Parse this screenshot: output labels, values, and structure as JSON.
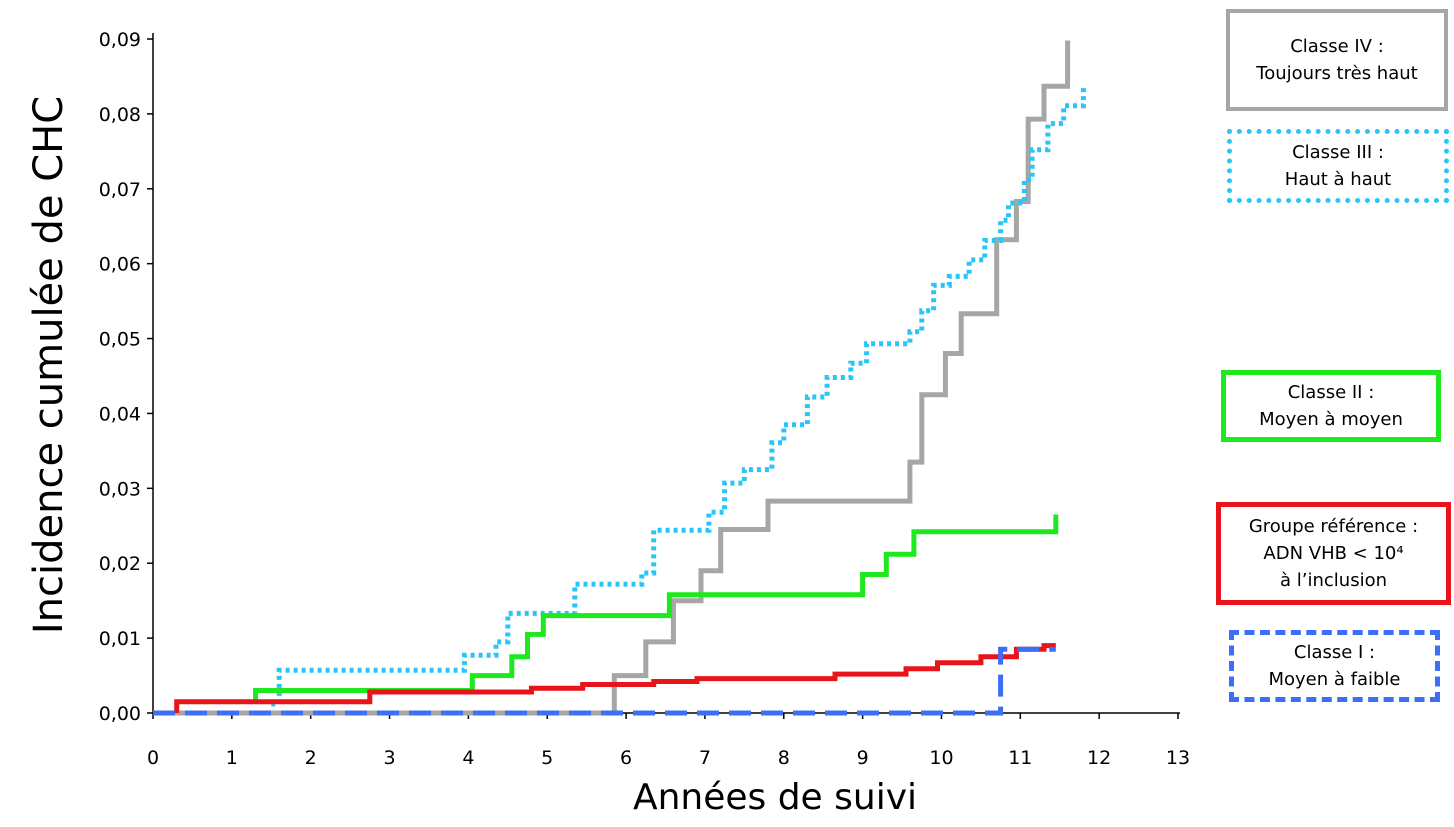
{
  "chart_data": {
    "type": "line",
    "step": true,
    "xlabel": "Années de suivi",
    "ylabel": "Incidence cumulée de CHC",
    "xlim": [
      0,
      13
    ],
    "ylim": [
      0,
      0.09
    ],
    "x_ticks": [
      "0",
      "1",
      "2",
      "3",
      "4",
      "5",
      "6",
      "7",
      "8",
      "9",
      "10",
      "11",
      "12",
      "13"
    ],
    "y_ticks": [
      "0,00",
      "0,01",
      "0,02",
      "0,03",
      "0,04",
      "0,05",
      "0,06",
      "0,07",
      "0,08",
      "0,09"
    ],
    "grid": false,
    "legend_position": "right",
    "series": [
      {
        "name": "Classe IV : Toujours très haut",
        "label_lines": [
          "Classe IV :",
          "Toujours très haut"
        ],
        "color": "#a6a6a6",
        "style": "solid",
        "points": [
          [
            0,
            0
          ],
          [
            5.85,
            0
          ],
          [
            5.85,
            0.005
          ],
          [
            6.25,
            0.005
          ],
          [
            6.25,
            0.0095
          ],
          [
            6.6,
            0.0095
          ],
          [
            6.6,
            0.015
          ],
          [
            6.95,
            0.015
          ],
          [
            6.95,
            0.019
          ],
          [
            7.2,
            0.019
          ],
          [
            7.2,
            0.0245
          ],
          [
            7.8,
            0.0245
          ],
          [
            7.8,
            0.0283
          ],
          [
            9.6,
            0.0283
          ],
          [
            9.6,
            0.0335
          ],
          [
            9.75,
            0.0335
          ],
          [
            9.75,
            0.0425
          ],
          [
            10.05,
            0.0425
          ],
          [
            10.05,
            0.048
          ],
          [
            10.25,
            0.048
          ],
          [
            10.25,
            0.0533
          ],
          [
            10.7,
            0.0533
          ],
          [
            10.7,
            0.0632
          ],
          [
            10.95,
            0.0632
          ],
          [
            10.95,
            0.0683
          ],
          [
            11.1,
            0.0683
          ],
          [
            11.1,
            0.0793
          ],
          [
            11.3,
            0.0793
          ],
          [
            11.3,
            0.0837
          ],
          [
            11.6,
            0.0837
          ],
          [
            11.6,
            0.0898
          ]
        ]
      },
      {
        "name": "Classe III : Haut à haut",
        "label_lines": [
          "Classe III :",
          "Haut à haut"
        ],
        "color": "#29c5f6",
        "style": "dotted",
        "points": [
          [
            1.5,
            0.0012
          ],
          [
            1.6,
            0.0012
          ],
          [
            1.6,
            0.0057
          ],
          [
            3.95,
            0.0057
          ],
          [
            3.95,
            0.0077
          ],
          [
            4.35,
            0.0077
          ],
          [
            4.35,
            0.0095
          ],
          [
            4.5,
            0.0095
          ],
          [
            4.5,
            0.0133
          ],
          [
            5.35,
            0.0133
          ],
          [
            5.35,
            0.0172
          ],
          [
            6.2,
            0.0172
          ],
          [
            6.2,
            0.0187
          ],
          [
            6.35,
            0.0187
          ],
          [
            6.35,
            0.0244
          ],
          [
            7.05,
            0.0244
          ],
          [
            7.05,
            0.0268
          ],
          [
            7.25,
            0.0268
          ],
          [
            7.25,
            0.0307
          ],
          [
            7.5,
            0.0307
          ],
          [
            7.5,
            0.0325
          ],
          [
            7.85,
            0.0325
          ],
          [
            7.85,
            0.0361
          ],
          [
            8.0,
            0.0361
          ],
          [
            8.0,
            0.0385
          ],
          [
            8.3,
            0.0385
          ],
          [
            8.3,
            0.0422
          ],
          [
            8.55,
            0.0422
          ],
          [
            8.55,
            0.0448
          ],
          [
            8.85,
            0.0448
          ],
          [
            8.85,
            0.0467
          ],
          [
            9.05,
            0.0467
          ],
          [
            9.05,
            0.0493
          ],
          [
            9.6,
            0.0493
          ],
          [
            9.6,
            0.0509
          ],
          [
            9.75,
            0.0509
          ],
          [
            9.75,
            0.0537
          ],
          [
            9.9,
            0.0537
          ],
          [
            9.9,
            0.0571
          ],
          [
            10.1,
            0.0571
          ],
          [
            10.1,
            0.0583
          ],
          [
            10.35,
            0.0583
          ],
          [
            10.35,
            0.0605
          ],
          [
            10.55,
            0.0605
          ],
          [
            10.55,
            0.0631
          ],
          [
            10.75,
            0.0631
          ],
          [
            10.75,
            0.0658
          ],
          [
            10.85,
            0.0658
          ],
          [
            10.85,
            0.0681
          ],
          [
            11.05,
            0.0681
          ],
          [
            11.05,
            0.0712
          ],
          [
            11.15,
            0.0712
          ],
          [
            11.15,
            0.0752
          ],
          [
            11.35,
            0.0752
          ],
          [
            11.35,
            0.0787
          ],
          [
            11.55,
            0.0787
          ],
          [
            11.55,
            0.0811
          ],
          [
            11.8,
            0.0811
          ],
          [
            11.8,
            0.0835
          ]
        ]
      },
      {
        "name": "Classe II : Moyen à moyen",
        "label_lines": [
          "Classe II :",
          "Moyen à moyen"
        ],
        "color": "#1ee81e",
        "style": "solid",
        "points": [
          [
            1.3,
            0.0012
          ],
          [
            1.3,
            0.003
          ],
          [
            4.05,
            0.003
          ],
          [
            4.05,
            0.005
          ],
          [
            4.55,
            0.005
          ],
          [
            4.55,
            0.0075
          ],
          [
            4.75,
            0.0075
          ],
          [
            4.75,
            0.0105
          ],
          [
            4.95,
            0.0105
          ],
          [
            4.95,
            0.013
          ],
          [
            6.55,
            0.013
          ],
          [
            6.55,
            0.0158
          ],
          [
            9.0,
            0.0158
          ],
          [
            9.0,
            0.0185
          ],
          [
            9.3,
            0.0185
          ],
          [
            9.3,
            0.0212
          ],
          [
            9.65,
            0.0212
          ],
          [
            9.65,
            0.0242
          ],
          [
            11.45,
            0.0242
          ],
          [
            11.45,
            0.0265
          ]
        ]
      },
      {
        "name": "Groupe référence : ADN VHB < 10⁴ à l’inclusion",
        "label_lines": [
          "Groupe référence :",
          "ADN VHB < 10⁴",
          "à l’inclusion"
        ],
        "color": "#e8141c",
        "style": "solid",
        "points": [
          [
            0.3,
            0
          ],
          [
            0.3,
            0.0015
          ],
          [
            2.75,
            0.0015
          ],
          [
            2.75,
            0.0028
          ],
          [
            4.8,
            0.0028
          ],
          [
            4.8,
            0.0033
          ],
          [
            5.45,
            0.0033
          ],
          [
            5.45,
            0.0038
          ],
          [
            6.35,
            0.0038
          ],
          [
            6.35,
            0.0042
          ],
          [
            6.9,
            0.0042
          ],
          [
            6.9,
            0.0046
          ],
          [
            8.65,
            0.0046
          ],
          [
            8.65,
            0.0052
          ],
          [
            9.55,
            0.0052
          ],
          [
            9.55,
            0.0059
          ],
          [
            9.95,
            0.0059
          ],
          [
            9.95,
            0.0067
          ],
          [
            10.5,
            0.0067
          ],
          [
            10.5,
            0.0075
          ],
          [
            10.95,
            0.0075
          ],
          [
            10.95,
            0.0085
          ],
          [
            11.3,
            0.0085
          ],
          [
            11.3,
            0.009
          ],
          [
            11.45,
            0.009
          ]
        ]
      },
      {
        "name": "Classe I : Moyen à faible",
        "label_lines": [
          "Classe I :",
          "Moyen à faible"
        ],
        "color": "#3d6ef5",
        "style": "dashed",
        "points": [
          [
            0,
            0
          ],
          [
            10.75,
            0
          ],
          [
            10.75,
            0.0085
          ],
          [
            11.45,
            0.0085
          ]
        ]
      }
    ]
  }
}
